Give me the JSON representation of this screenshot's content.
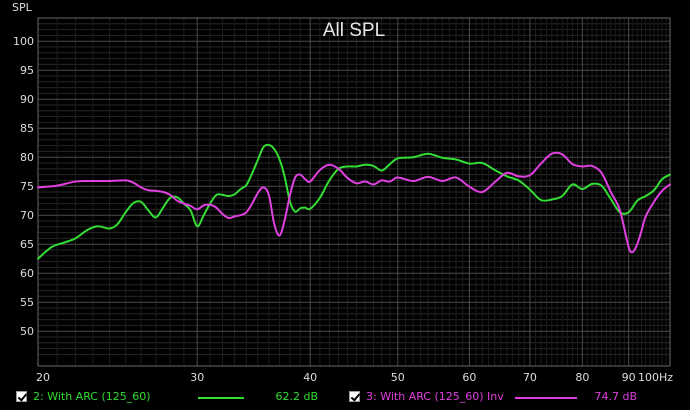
{
  "chart_data": {
    "type": "line",
    "title": "All SPL",
    "ylabel": "SPL",
    "xlabel": "",
    "x_scale": "log",
    "xlim": [
      20,
      100
    ],
    "ylim": [
      44,
      104
    ],
    "y_ticks": [
      50,
      55,
      60,
      65,
      70,
      75,
      80,
      85,
      90,
      95,
      100
    ],
    "x_ticks": [
      {
        "value": 20,
        "label": "20"
      },
      {
        "value": 30,
        "label": "30"
      },
      {
        "value": 40,
        "label": "40"
      },
      {
        "value": 50,
        "label": "50"
      },
      {
        "value": 60,
        "label": "60"
      },
      {
        "value": 70,
        "label": "70"
      },
      {
        "value": 80,
        "label": "80"
      },
      {
        "value": 90,
        "label": "90"
      },
      {
        "value": 100,
        "label": "100Hz"
      }
    ],
    "grid": true,
    "legend": "bottom",
    "series": [
      {
        "name": "2: With ARC (125_60)",
        "color": "#33dd33",
        "value_label": "62.2 dB",
        "x": [
          20,
          20.7,
          21.4,
          22,
          22.7,
          23.3,
          24,
          24.5,
          25,
          25.5,
          26,
          26.5,
          27,
          27.5,
          28,
          28.5,
          29,
          29.5,
          30,
          30.5,
          31,
          31.5,
          32,
          32.5,
          33,
          33.5,
          34,
          34.5,
          35,
          35.5,
          36,
          36.5,
          37,
          37.5,
          38,
          38.5,
          39,
          39.5,
          40,
          41,
          42,
          43,
          44,
          45,
          46,
          47,
          48,
          49,
          50,
          52,
          54,
          56,
          58,
          60,
          62,
          64,
          66,
          68,
          70,
          72,
          74,
          76,
          78,
          80,
          82,
          84,
          86,
          88,
          90,
          92,
          94,
          96,
          98,
          100
        ],
        "y": [
          62.5,
          64.5,
          65.3,
          66,
          67.5,
          68.1,
          67.7,
          68.5,
          70.5,
          72.1,
          72.3,
          70.8,
          69.6,
          71.3,
          73,
          73.1,
          72,
          70.8,
          68.1,
          70,
          72,
          73.5,
          73.5,
          73.3,
          73.6,
          74.5,
          75.2,
          77.2,
          79.5,
          81.7,
          82.1,
          81.4,
          79.6,
          76.5,
          72.3,
          70.6,
          71.2,
          71.3,
          71.1,
          73,
          76,
          78,
          78.4,
          78.4,
          78.7,
          78.5,
          77.7,
          78.8,
          79.8,
          80,
          80.6,
          79.9,
          79.6,
          78.9,
          79,
          77.8,
          76.7,
          76,
          74.4,
          72.6,
          72.7,
          73.3,
          75.3,
          74.5,
          75.4,
          75.1,
          72.8,
          70.5,
          70.5,
          72.5,
          73.3,
          74.3,
          76.2,
          77
        ]
      },
      {
        "name": "3: With ARC (125_60) Inv",
        "color": "#e040e0",
        "value_label": "74.7 dB",
        "x": [
          20,
          21,
          22,
          23,
          24,
          25,
          25.5,
          26,
          26.5,
          27,
          27.5,
          28,
          28.5,
          29,
          29.5,
          30,
          30.5,
          31,
          31.5,
          32,
          32.5,
          33,
          33.5,
          34,
          34.5,
          35,
          35.5,
          36,
          36.5,
          37,
          37.5,
          38,
          38.5,
          39,
          39.5,
          40,
          41,
          42,
          43,
          44,
          45,
          46,
          47,
          48,
          49,
          50,
          52,
          54,
          56,
          58,
          60,
          62,
          64,
          66,
          68,
          70,
          72,
          74,
          76,
          78,
          80,
          82,
          84,
          86,
          88,
          90,
          91,
          92,
          93,
          94,
          96,
          98,
          100
        ],
        "y": [
          74.8,
          75.1,
          75.8,
          75.9,
          75.9,
          76,
          75.6,
          74.8,
          74.3,
          74.2,
          74,
          73.5,
          72.5,
          72,
          71.6,
          71,
          71.7,
          71.8,
          71.3,
          70.2,
          69.5,
          69.8,
          70,
          70.5,
          72,
          73.8,
          74.8,
          73.5,
          68.5,
          66.5,
          69.3,
          73.5,
          76.5,
          77,
          76.2,
          75.8,
          77.8,
          78.7,
          78,
          76.4,
          75.5,
          75.8,
          75.3,
          76,
          75.8,
          76.5,
          75.9,
          76.6,
          75.9,
          76.5,
          74.9,
          74,
          75.7,
          77.3,
          76.7,
          76.9,
          78.9,
          80.6,
          80.5,
          78.8,
          78.4,
          78.5,
          77.3,
          74,
          70.9,
          64.5,
          63.7,
          65,
          67.3,
          69.8,
          72.3,
          74.2,
          75.3
        ]
      }
    ]
  }
}
